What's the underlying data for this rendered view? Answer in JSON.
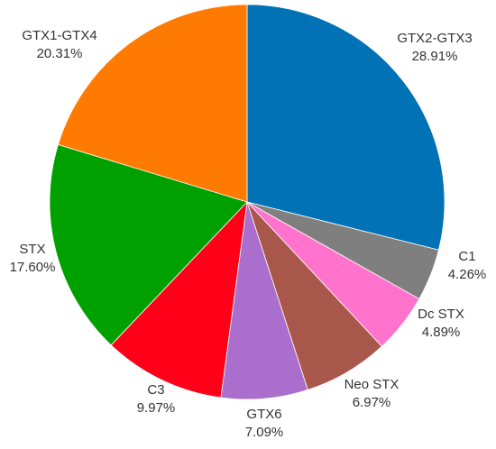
{
  "chart_data": {
    "type": "pie",
    "title": "",
    "start_angle_deg": 0,
    "direction": "clockwise",
    "slices": [
      {
        "label": "GTX2-GTX3",
        "percent_text": "28.91%",
        "value": 28.91,
        "color": "#0072B5"
      },
      {
        "label": "C1",
        "percent_text": "4.26%",
        "value": 4.26,
        "color": "#7F7F7F"
      },
      {
        "label": "Dc STX",
        "percent_text": "4.89%",
        "value": 4.89,
        "color": "#FF73CC"
      },
      {
        "label": "Neo STX",
        "percent_text": "6.97%",
        "value": 6.97,
        "color": "#A9564B"
      },
      {
        "label": "GTX6",
        "percent_text": "7.09%",
        "value": 7.09,
        "color": "#AA6FCC"
      },
      {
        "label": "C3",
        "percent_text": "9.97%",
        "value": 9.97,
        "color": "#FF0018"
      },
      {
        "label": "STX",
        "percent_text": "17.60%",
        "value": 17.6,
        "color": "#00A000"
      },
      {
        "label": "GTX1-GTX4",
        "percent_text": "20.31%",
        "value": 20.31,
        "color": "#FF7A00"
      }
    ]
  }
}
